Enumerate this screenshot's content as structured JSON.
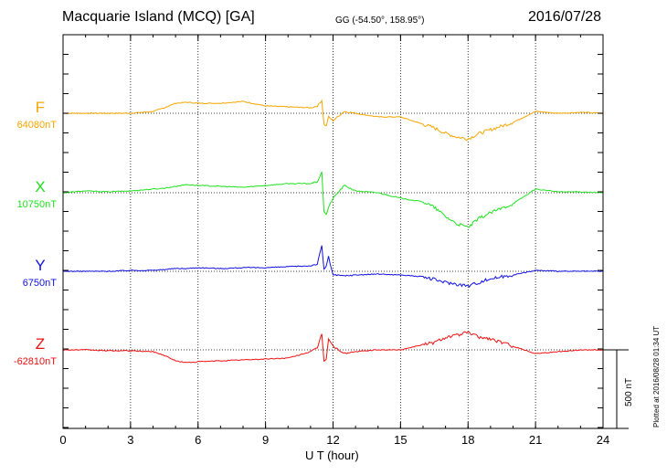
{
  "header": {
    "station": "Macquarie Island (MCQ)  [GA]",
    "coords": "GG (-54.50°, 158.95°)",
    "date": "2016/07/28"
  },
  "footer": {
    "plotted": "Plotted at 2016/08/28 01:34 UT",
    "scale": "500 nT"
  },
  "chart_data": {
    "type": "line",
    "title": "Macquarie Island (MCQ)  [GA]",
    "xlabel": "U T (hour)",
    "ylabel": "",
    "xlim": [
      0,
      24
    ],
    "xticks": [
      "0",
      "3",
      "6",
      "9",
      "12",
      "15",
      "18",
      "21",
      "24"
    ],
    "grid": true,
    "scale_bar_nT": 500,
    "series": [
      {
        "name": "F",
        "baseline": "64080nT",
        "color": "#f5a500",
        "x": [
          0,
          1,
          2,
          3,
          4,
          4.5,
          5,
          5.5,
          6,
          7,
          8,
          9,
          10,
          11,
          11.3,
          11.5,
          11.6,
          11.7,
          11.8,
          12,
          12.5,
          13,
          14,
          15,
          16,
          16.5,
          17,
          17.5,
          18,
          18.5,
          19,
          20,
          21,
          22,
          23,
          24
        ],
        "values": [
          0,
          0,
          0,
          0,
          10,
          30,
          55,
          60,
          55,
          55,
          65,
          40,
          35,
          30,
          40,
          70,
          -60,
          -70,
          -20,
          -40,
          10,
          0,
          -20,
          -20,
          -60,
          -80,
          -110,
          -130,
          -140,
          -110,
          -90,
          -50,
          10,
          0,
          5,
          0
        ]
      },
      {
        "name": "X",
        "baseline": "10750nT",
        "color": "#1fe01f",
        "x": [
          0,
          1,
          2,
          3,
          4,
          4.5,
          5,
          5.5,
          6,
          7,
          8,
          9,
          10,
          11,
          11.3,
          11.5,
          11.6,
          11.7,
          11.8,
          12,
          12.5,
          13,
          14,
          15,
          16,
          16.5,
          17,
          17.5,
          18,
          18.5,
          19,
          20,
          21,
          22,
          23,
          24
        ],
        "values": [
          0,
          10,
          5,
          10,
          20,
          25,
          35,
          45,
          40,
          35,
          30,
          40,
          50,
          50,
          60,
          110,
          -100,
          -120,
          -80,
          -30,
          40,
          10,
          0,
          -30,
          -50,
          -80,
          -130,
          -170,
          -190,
          -140,
          -110,
          -60,
          20,
          5,
          5,
          0
        ]
      },
      {
        "name": "Y",
        "baseline": "6750nT",
        "color": "#1010e0",
        "x": [
          0,
          1,
          2,
          3,
          4,
          4.5,
          5,
          5.5,
          6,
          7,
          8,
          9,
          10,
          11,
          11.3,
          11.5,
          11.6,
          11.7,
          11.8,
          12,
          12.5,
          13,
          14,
          15,
          16,
          16.5,
          17,
          17.5,
          18,
          18.5,
          19,
          20,
          21,
          22,
          23,
          24
        ],
        "values": [
          0,
          0,
          0,
          5,
          5,
          10,
          15,
          15,
          20,
          15,
          20,
          20,
          25,
          30,
          40,
          140,
          10,
          30,
          80,
          -20,
          -25,
          -20,
          -15,
          -20,
          -30,
          -45,
          -60,
          -70,
          -80,
          -60,
          -40,
          -20,
          5,
          0,
          0,
          0
        ]
      },
      {
        "name": "Z",
        "baseline": "-62810nT",
        "color": "#ee1010",
        "x": [
          0,
          1,
          2,
          3,
          4,
          4.5,
          5,
          5.5,
          6,
          7,
          8,
          9,
          10,
          11,
          11.3,
          11.5,
          11.6,
          11.7,
          11.8,
          12,
          12.5,
          13,
          14,
          15,
          16,
          16.5,
          17,
          17.5,
          18,
          18.5,
          19,
          20,
          21,
          22,
          23,
          24
        ],
        "values": [
          0,
          0,
          -5,
          -5,
          -10,
          -30,
          -60,
          -70,
          -65,
          -60,
          -55,
          -50,
          -45,
          -10,
          10,
          90,
          -60,
          -50,
          60,
          20,
          -20,
          -10,
          0,
          0,
          30,
          40,
          70,
          80,
          95,
          70,
          60,
          20,
          -20,
          -10,
          0,
          0
        ]
      }
    ]
  }
}
